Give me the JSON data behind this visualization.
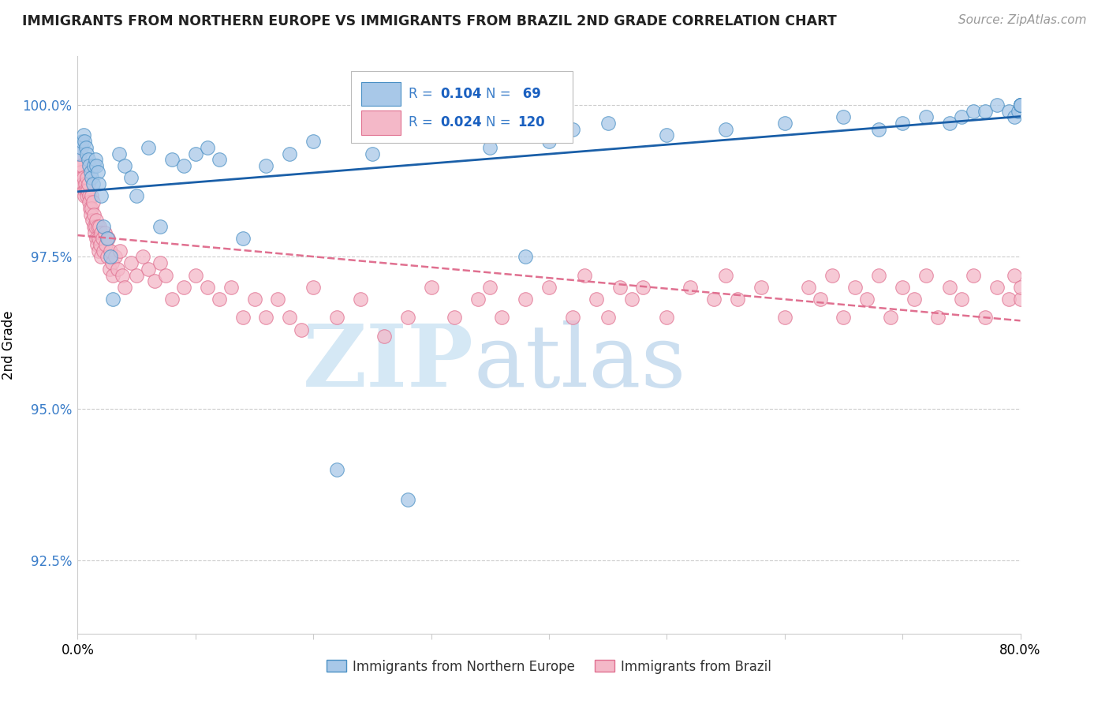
{
  "title": "IMMIGRANTS FROM NORTHERN EUROPE VS IMMIGRANTS FROM BRAZIL 2ND GRADE CORRELATION CHART",
  "source": "Source: ZipAtlas.com",
  "ylabel": "2nd Grade",
  "y_ticks": [
    92.5,
    95.0,
    97.5,
    100.0
  ],
  "y_tick_labels": [
    "92.5%",
    "95.0%",
    "97.5%",
    "100.0%"
  ],
  "xlim": [
    0.0,
    80.0
  ],
  "ylim": [
    91.3,
    100.8
  ],
  "blue_color": "#a8c8e8",
  "pink_color": "#f4b8c8",
  "blue_edge_color": "#4a90c4",
  "pink_edge_color": "#e07090",
  "blue_line_color": "#1a5fa8",
  "pink_line_color": "#e07090",
  "watermark_zip_color": "#d5e8f5",
  "watermark_atlas_color": "#ccdff0",
  "legend_r_blue": "0.104",
  "legend_n_blue": "69",
  "legend_r_pink": "0.024",
  "legend_n_pink": "120",
  "blue_scatter_x": [
    0.2,
    0.3,
    0.4,
    0.5,
    0.6,
    0.7,
    0.8,
    0.9,
    1.0,
    1.1,
    1.2,
    1.3,
    1.4,
    1.5,
    1.6,
    1.7,
    1.8,
    2.0,
    2.2,
    2.5,
    2.8,
    3.0,
    3.5,
    4.0,
    4.5,
    5.0,
    6.0,
    7.0,
    8.0,
    9.0,
    10.0,
    11.0,
    12.0,
    14.0,
    16.0,
    18.0,
    20.0,
    22.0,
    25.0,
    28.0,
    30.0,
    35.0,
    38.0,
    40.0,
    42.0,
    45.0,
    50.0,
    55.0,
    60.0,
    65.0,
    68.0,
    70.0,
    72.0,
    74.0,
    75.0,
    76.0,
    77.0,
    78.0,
    79.0,
    79.5,
    79.8,
    80.0,
    80.0,
    80.0,
    80.0,
    80.0,
    80.0,
    80.0,
    80.0
  ],
  "blue_scatter_y": [
    99.2,
    99.3,
    99.4,
    99.5,
    99.4,
    99.3,
    99.2,
    99.1,
    99.0,
    98.9,
    98.8,
    98.7,
    99.0,
    99.1,
    99.0,
    98.9,
    98.7,
    98.5,
    98.0,
    97.8,
    97.5,
    96.8,
    99.2,
    99.0,
    98.8,
    98.5,
    99.3,
    98.0,
    99.1,
    99.0,
    99.2,
    99.3,
    99.1,
    97.8,
    99.0,
    99.2,
    99.4,
    94.0,
    99.2,
    93.5,
    99.5,
    99.3,
    97.5,
    99.4,
    99.6,
    99.7,
    99.5,
    99.6,
    99.7,
    99.8,
    99.6,
    99.7,
    99.8,
    99.7,
    99.8,
    99.9,
    99.9,
    100.0,
    99.9,
    99.8,
    99.9,
    100.0,
    100.0,
    100.0,
    100.0,
    100.0,
    100.0,
    100.0,
    100.0
  ],
  "pink_scatter_x": [
    0.1,
    0.15,
    0.2,
    0.25,
    0.3,
    0.35,
    0.4,
    0.45,
    0.5,
    0.55,
    0.6,
    0.65,
    0.7,
    0.75,
    0.8,
    0.85,
    0.9,
    0.95,
    1.0,
    1.05,
    1.1,
    1.15,
    1.2,
    1.25,
    1.3,
    1.35,
    1.4,
    1.45,
    1.5,
    1.55,
    1.6,
    1.65,
    1.7,
    1.75,
    1.8,
    1.85,
    1.9,
    1.95,
    2.0,
    2.1,
    2.2,
    2.3,
    2.4,
    2.5,
    2.6,
    2.7,
    2.8,
    2.9,
    3.0,
    3.2,
    3.4,
    3.6,
    3.8,
    4.0,
    4.5,
    5.0,
    5.5,
    6.0,
    6.5,
    7.0,
    7.5,
    8.0,
    9.0,
    10.0,
    11.0,
    12.0,
    13.0,
    14.0,
    15.0,
    16.0,
    17.0,
    18.0,
    19.0,
    20.0,
    22.0,
    24.0,
    26.0,
    28.0,
    30.0,
    32.0,
    34.0,
    35.0,
    36.0,
    38.0,
    40.0,
    42.0,
    43.0,
    44.0,
    45.0,
    46.0,
    47.0,
    48.0,
    50.0,
    52.0,
    54.0,
    55.0,
    56.0,
    58.0,
    60.0,
    62.0,
    63.0,
    64.0,
    65.0,
    66.0,
    67.0,
    68.0,
    69.0,
    70.0,
    71.0,
    72.0,
    73.0,
    74.0,
    75.0,
    76.0,
    77.0,
    78.0,
    79.0,
    79.5,
    80.0,
    80.0
  ],
  "pink_scatter_y": [
    99.3,
    99.2,
    99.1,
    99.0,
    98.9,
    98.8,
    99.0,
    98.7,
    98.8,
    98.6,
    98.5,
    98.7,
    98.6,
    98.8,
    98.5,
    98.6,
    98.7,
    98.5,
    98.4,
    98.3,
    98.2,
    98.5,
    98.3,
    98.1,
    98.4,
    98.0,
    98.2,
    97.9,
    98.0,
    97.8,
    98.1,
    97.7,
    98.0,
    97.8,
    97.6,
    98.0,
    97.7,
    97.9,
    97.5,
    97.8,
    97.6,
    97.9,
    97.7,
    97.5,
    97.8,
    97.3,
    97.6,
    97.4,
    97.2,
    97.5,
    97.3,
    97.6,
    97.2,
    97.0,
    97.4,
    97.2,
    97.5,
    97.3,
    97.1,
    97.4,
    97.2,
    96.8,
    97.0,
    97.2,
    97.0,
    96.8,
    97.0,
    96.5,
    96.8,
    96.5,
    96.8,
    96.5,
    96.3,
    97.0,
    96.5,
    96.8,
    96.2,
    96.5,
    97.0,
    96.5,
    96.8,
    97.0,
    96.5,
    96.8,
    97.0,
    96.5,
    97.2,
    96.8,
    96.5,
    97.0,
    96.8,
    97.0,
    96.5,
    97.0,
    96.8,
    97.2,
    96.8,
    97.0,
    96.5,
    97.0,
    96.8,
    97.2,
    96.5,
    97.0,
    96.8,
    97.2,
    96.5,
    97.0,
    96.8,
    97.2,
    96.5,
    97.0,
    96.8,
    97.2,
    96.5,
    97.0,
    96.8,
    97.2,
    96.8,
    97.0
  ]
}
